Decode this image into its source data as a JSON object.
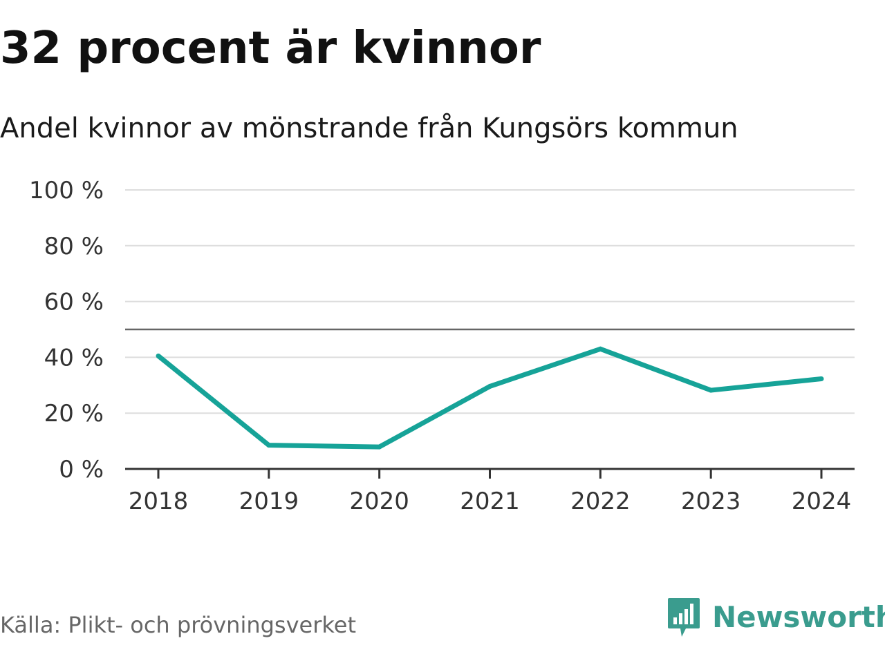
{
  "chart_data": {
    "type": "line",
    "title": "32 procent är kvinnor",
    "subtitle": "Andel kvinnor av mönstrande från Kungsörs kommun",
    "categories": [
      "2018",
      "2019",
      "2020",
      "2021",
      "2022",
      "2023",
      "2024"
    ],
    "series": [
      {
        "name": "Andel kvinnor",
        "values": [
          40.5,
          8.5,
          7.9,
          29.6,
          43.0,
          28.2,
          32.3
        ]
      }
    ],
    "reference_line": 50,
    "ylim": [
      0,
      100
    ],
    "yticks": [
      0,
      20,
      40,
      60,
      80,
      100
    ],
    "ytick_labels": [
      "0 %",
      "20 %",
      "40 %",
      "60 %",
      "80 %",
      "100 %"
    ],
    "xlabel": "",
    "ylabel": "",
    "grid": true,
    "line_color": "#16a398",
    "source": "Källa: Plikt- och prövningsverket"
  },
  "brand": {
    "name": "Newsworthy",
    "color": "#3a9c8e",
    "icon": "newsworthy-logo-icon"
  }
}
